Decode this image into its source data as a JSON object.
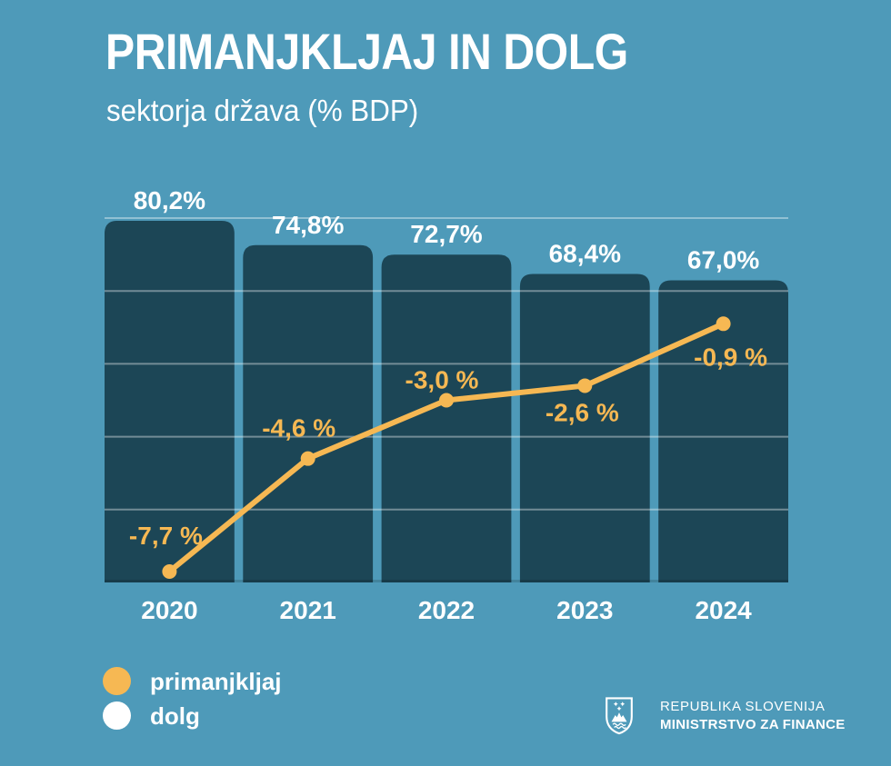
{
  "chart_data": {
    "type": "bar+line",
    "title": "PRIMANJKLJAJ IN DOLG",
    "subtitle": "sektorja država (% BDP)",
    "categories": [
      "2020",
      "2021",
      "2022",
      "2023",
      "2024"
    ],
    "series": [
      {
        "name": "dolg",
        "type": "bar",
        "unit": "% BDP",
        "values": [
          80.2,
          74.8,
          72.7,
          68.4,
          67.0
        ],
        "labels": [
          "80,2%",
          "74,8%",
          "72,7%",
          "68,4%",
          "67,0%"
        ],
        "color": "#1c4656",
        "label_color": "#ffffff"
      },
      {
        "name": "primanjkljaj",
        "type": "line",
        "unit": "% BDP",
        "values": [
          -7.7,
          -4.6,
          -3.0,
          -2.6,
          -0.9
        ],
        "labels": [
          "-7,7 %",
          "-4,6 %",
          "-3,0 %",
          "-2,6 %",
          "-0,9 %"
        ],
        "color": "#f6b853"
      }
    ],
    "bar_axis": {
      "min": 0,
      "max": 80.8
    },
    "line_axis": {
      "min": -8,
      "max": 2,
      "gridlines": [
        2,
        0,
        -2,
        -4,
        -6
      ]
    },
    "grid_color": "rgba(255,255,255,0.38)",
    "grid_on": true,
    "legend_position": "bottom-left",
    "legend": [
      {
        "label": "primanjkljaj",
        "color": "#f6b853"
      },
      {
        "label": "dolg",
        "color": "#ffffff"
      }
    ]
  },
  "footer": {
    "org_line1": "REPUBLIKA SLOVENIJA",
    "org_line2": "MINISTRSTVO ZA FINANCE"
  },
  "colors": {
    "background": "#4e9ab9",
    "bar": "#1c4656",
    "accent_orange": "#f6b853",
    "text": "#ffffff"
  }
}
